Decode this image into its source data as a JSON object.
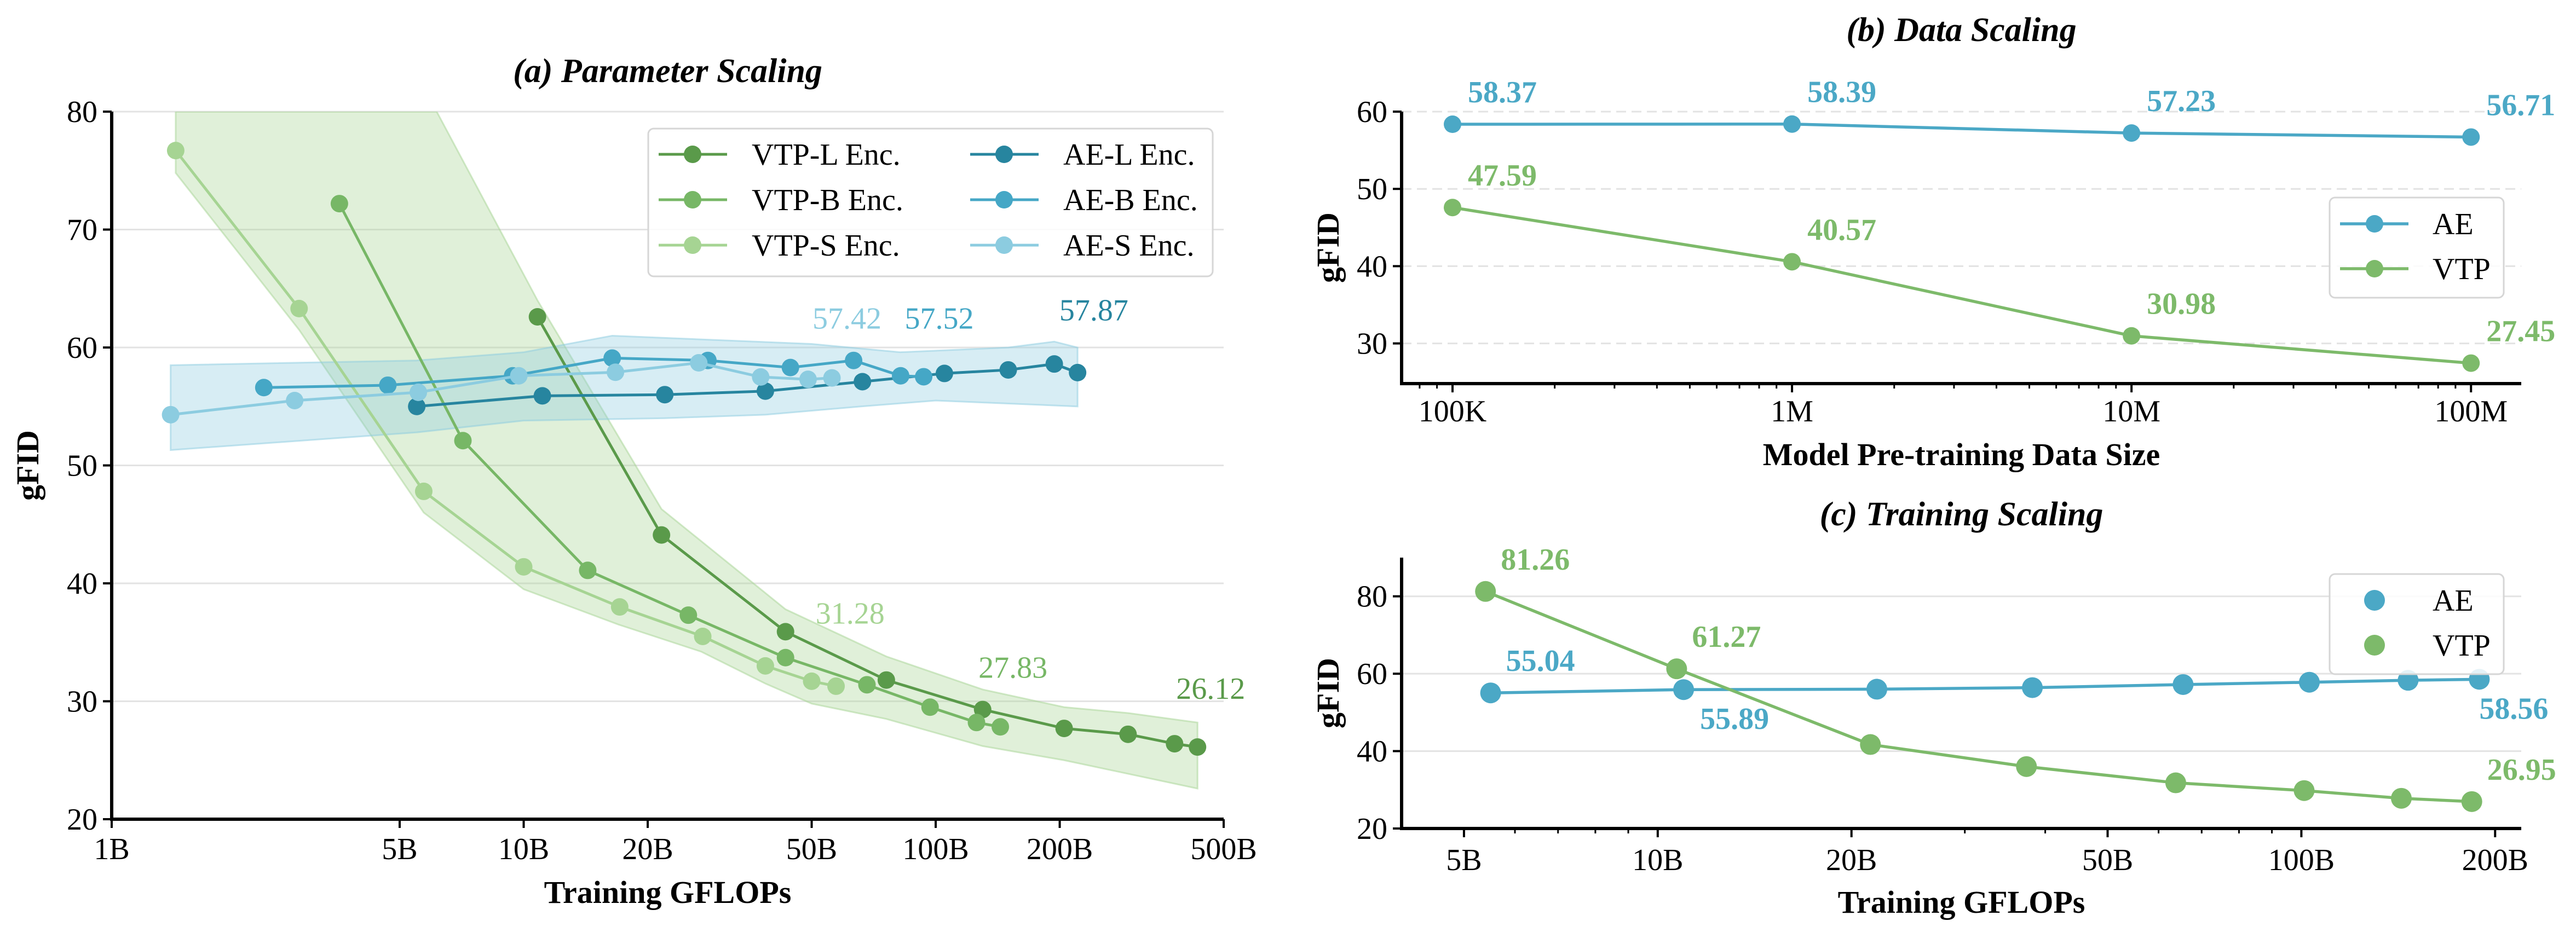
{
  "chart_data": [
    {
      "panel": "a",
      "type": "line",
      "title": "(a) Parameter Scaling",
      "xlabel": "Training GFLOPs",
      "ylabel": "gFID",
      "xscale": "log",
      "xlim": [
        1,
        500
      ],
      "ylim": [
        20,
        80
      ],
      "xticks": [
        1,
        5,
        10,
        20,
        50,
        100,
        200,
        500
      ],
      "xtick_labels": [
        "1B",
        "5B",
        "10B",
        "20B",
        "50B",
        "100B",
        "200B",
        "500B"
      ],
      "yticks": [
        20,
        30,
        40,
        50,
        60,
        70,
        80
      ],
      "ytick_labels": [
        "20",
        "30",
        "40",
        "50",
        "60",
        "70",
        "80"
      ],
      "grid": "horizontal solid",
      "minor_ticks": false,
      "legend": "upper right, 2 columns",
      "series": [
        {
          "name": "VTP-L Enc.",
          "color": "#5a9a4a",
          "x": [
            10.8,
            21.6,
            43.2,
            75.9,
            130,
            205,
            293,
            380,
            432
          ],
          "y": [
            62.6,
            44.1,
            35.9,
            31.8,
            29.3,
            27.7,
            27.2,
            26.4,
            26.12
          ]
        },
        {
          "name": "VTP-B Enc.",
          "color": "#77b766",
          "x": [
            3.57,
            7.12,
            14.3,
            25.1,
            43.2,
            68.1,
            96.9,
            125.6,
            143.5
          ],
          "y": [
            72.2,
            52.1,
            41.1,
            37.3,
            33.7,
            31.4,
            29.5,
            28.2,
            27.83
          ]
        },
        {
          "name": "VTP-S Enc.",
          "color": "#a6d493",
          "x": [
            1.43,
            2.85,
            5.72,
            10.0,
            17.1,
            27.2,
            38.6,
            50,
            57.3
          ],
          "y": [
            76.7,
            63.3,
            47.8,
            41.4,
            38.0,
            35.5,
            33.0,
            31.7,
            31.28
          ]
        },
        {
          "name": "AE-L Enc.",
          "color": "#27859f",
          "x": [
            5.5,
            11.1,
            22.0,
            38.6,
            66.4,
            105,
            150,
            194,
            221
          ],
          "y": [
            55.0,
            55.9,
            56.0,
            56.3,
            57.1,
            57.8,
            58.1,
            58.6,
            57.87
          ]
        },
        {
          "name": "AE-B Enc.",
          "color": "#45a7c6",
          "x": [
            2.34,
            4.68,
            9.4,
            16.4,
            28.0,
            44.4,
            63.2,
            82.2,
            93.5
          ],
          "y": [
            56.6,
            56.8,
            57.6,
            59.1,
            58.9,
            58.3,
            58.9,
            57.6,
            57.52
          ]
        },
        {
          "name": "AE-S Enc.",
          "color": "#8ccce0",
          "x": [
            1.39,
            2.78,
            5.55,
            9.73,
            16.7,
            26.6,
            37.6,
            49,
            56
          ],
          "y": [
            54.3,
            55.5,
            56.2,
            57.6,
            57.9,
            58.7,
            57.5,
            57.3,
            57.42
          ]
        }
      ],
      "bands": [
        {
          "color": "#a6d493",
          "upper": {
            "x": [
              1.43,
              6.15,
              10.8,
              21.6,
              43.2,
              75.9,
              130,
              205,
              293,
              432
            ],
            "y": [
              80,
              80,
              64,
              46.3,
              37.8,
              33.8,
              31.0,
              29.5,
              29.0,
              28.2
            ]
          },
          "lower": {
            "x": [
              1.43,
              2.85,
              5.72,
              10,
              17,
              27,
              38.6,
              50,
              75.9,
              130,
              205,
              432
            ],
            "y": [
              74.8,
              61.5,
              46,
              39.5,
              36.5,
              34.2,
              31.5,
              29.8,
              28.5,
              26.2,
              25.0,
              22.6
            ]
          }
        },
        {
          "color": "#8ccce0",
          "upper": {
            "x": [
              1.39,
              5.5,
              10,
              16.4,
              50,
              82,
              150,
              194,
              221
            ],
            "y": [
              58.5,
              58.9,
              59.6,
              61.0,
              60.3,
              59.6,
              60.0,
              60.5,
              60.0
            ]
          },
          "lower": {
            "x": [
              1.39,
              5.5,
              10,
              22,
              38.6,
              66,
              100,
              221
            ],
            "y": [
              51.3,
              52.8,
              53.8,
              54.0,
              54.3,
              55.0,
              55.5,
              55.0
            ]
          }
        }
      ],
      "annotations": [
        {
          "text": "57.42",
          "x": 60.9,
          "y": 61.6,
          "color": "#8ccce0"
        },
        {
          "text": "57.52",
          "x": 102,
          "y": 61.6,
          "color": "#45a7c6"
        },
        {
          "text": "57.87",
          "x": 242,
          "y": 62.3,
          "color": "#27859f"
        },
        {
          "text": "31.28",
          "x": 62,
          "y": 36.6,
          "color": "#a6d493"
        },
        {
          "text": "27.83",
          "x": 154,
          "y": 32.0,
          "color": "#77b766"
        },
        {
          "text": "26.12",
          "x": 465,
          "y": 30.2,
          "color": "#5a9a4a"
        }
      ]
    },
    {
      "panel": "b",
      "type": "line",
      "title": "(b) Data Scaling",
      "xlabel": "Model Pre-training Data Size",
      "ylabel": "gFID",
      "xscale": "log",
      "xlim": [
        70800,
        140600000
      ],
      "ylim": [
        24.8,
        60
      ],
      "xticks": [
        100000,
        1000000,
        10000000,
        100000000
      ],
      "xtick_labels": [
        "100K",
        "1M",
        "10M",
        "100M"
      ],
      "yticks": [
        30,
        40,
        50,
        60
      ],
      "ytick_labels": [
        "30",
        "40",
        "50",
        "60"
      ],
      "grid": "horizontal dashed",
      "minor_ticks": true,
      "legend": "center right",
      "legend_style": "line+marker",
      "series": [
        {
          "name": "AE",
          "color": "#4ba8c6",
          "x": [
            100000,
            1000000,
            10000000,
            100000000
          ],
          "y": [
            58.37,
            58.39,
            57.23,
            56.71
          ],
          "labels": [
            {
              "i": 0,
              "text": "58.37",
              "position": "above"
            },
            {
              "i": 1,
              "text": "58.39",
              "position": "above"
            },
            {
              "i": 2,
              "text": "57.23",
              "position": "above"
            },
            {
              "i": 3,
              "text": "56.71",
              "position": "above"
            }
          ]
        },
        {
          "name": "VTP",
          "color": "#7dba6a",
          "x": [
            100000,
            1000000,
            10000000,
            100000000
          ],
          "y": [
            47.59,
            40.57,
            30.98,
            27.45
          ],
          "labels": [
            {
              "i": 0,
              "text": "47.59",
              "position": "above"
            },
            {
              "i": 1,
              "text": "40.57",
              "position": "above"
            },
            {
              "i": 2,
              "text": "30.98",
              "position": "above"
            },
            {
              "i": 3,
              "text": "27.45",
              "position": "above"
            }
          ]
        }
      ]
    },
    {
      "panel": "c",
      "type": "line",
      "title": "(c) Training Scaling",
      "xlabel": "Training GFLOPs",
      "ylabel": "gFID",
      "xscale": "log",
      "xlim": [
        4.0,
        219.6
      ],
      "ylim": [
        20,
        90
      ],
      "xticks": [
        5,
        10,
        20,
        50,
        100,
        200
      ],
      "xtick_labels": [
        "5B",
        "10B",
        "20B",
        "50B",
        "100B",
        "200B"
      ],
      "yticks": [
        20,
        40,
        60,
        80
      ],
      "ytick_labels": [
        "20",
        "40",
        "60",
        "80"
      ],
      "grid": "horizontal solid",
      "minor_ticks": true,
      "legend": "upper right",
      "legend_style": "marker",
      "series": [
        {
          "name": "AE",
          "color": "#4ba8c6",
          "x": [
            5.5,
            10.97,
            21.9,
            38.2,
            65.5,
            102.9,
            146.5,
            189
          ],
          "y": [
            55.04,
            55.89,
            56.0,
            56.4,
            57.2,
            57.8,
            58.3,
            58.56
          ],
          "labels": [
            {
              "i": 0,
              "text": "55.04",
              "position": "above"
            },
            {
              "i": 1,
              "text": "55.89",
              "position": "below"
            },
            {
              "i": 7,
              "text": "58.56",
              "position": "below"
            }
          ]
        },
        {
          "name": "VTP",
          "color": "#7dba6a",
          "x": [
            5.4,
            10.7,
            21.4,
            37.4,
            63.8,
            101,
            143,
            184
          ],
          "y": [
            81.26,
            61.27,
            41.7,
            36.0,
            31.8,
            29.8,
            27.8,
            26.95
          ],
          "labels": [
            {
              "i": 0,
              "text": "81.26",
              "position": "above"
            },
            {
              "i": 1,
              "text": "61.27",
              "position": "above"
            },
            {
              "i": 7,
              "text": "26.95",
              "position": "above"
            }
          ]
        }
      ]
    }
  ]
}
